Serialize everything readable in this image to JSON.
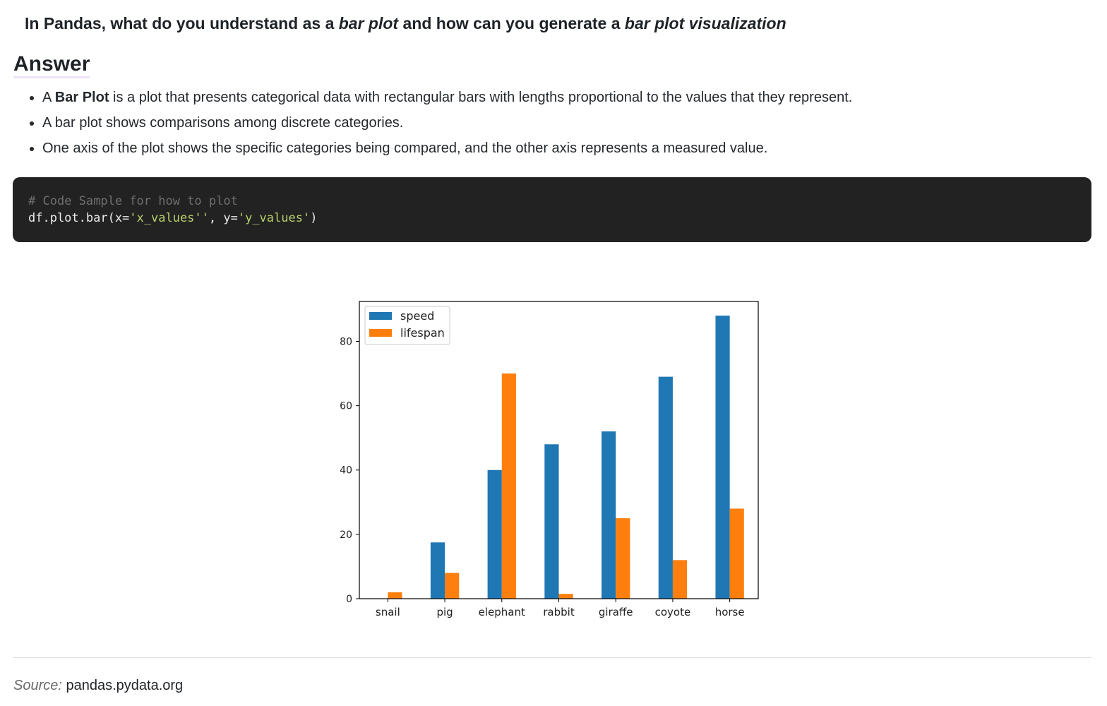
{
  "question": {
    "part1": "In Pandas, what do you understand as a ",
    "em1": "bar plot",
    "part2": " and how can you generate a ",
    "em2": "bar plot visualization"
  },
  "answer_heading": "Answer",
  "bullets": [
    {
      "prefix": "A ",
      "bold": "Bar Plot",
      "text": " is a plot that presents categorical data with rectangular bars with lengths proportional to the values that they represent."
    },
    {
      "prefix": "",
      "bold": "",
      "text": "A bar plot shows comparisons among discrete categories."
    },
    {
      "prefix": "",
      "bold": "",
      "text": "One axis of the plot shows the specific categories being compared, and the other axis represents a measured value."
    }
  ],
  "code": {
    "comment": "# Code Sample for how to plot",
    "line_pre": "df.plot.bar(x=",
    "str1": "'x_values''",
    "line_mid": ", y=",
    "str2": "'y_values'",
    "line_post": ")"
  },
  "chart_data": {
    "type": "bar",
    "categories": [
      "snail",
      "pig",
      "elephant",
      "rabbit",
      "giraffe",
      "coyote",
      "horse"
    ],
    "series": [
      {
        "name": "speed",
        "color": "#1f77b4",
        "values": [
          0.1,
          17.5,
          40,
          48,
          52,
          69,
          88
        ]
      },
      {
        "name": "lifespan",
        "color": "#ff7f0e",
        "values": [
          2,
          8,
          70,
          1.5,
          25,
          12,
          28
        ]
      }
    ],
    "yticks": [
      0,
      20,
      40,
      60,
      80
    ],
    "ylim": [
      0,
      92.4
    ],
    "legend": "top-left",
    "grid": false
  },
  "source": {
    "label": "Source:",
    "text": "pandas.pydata.org"
  }
}
